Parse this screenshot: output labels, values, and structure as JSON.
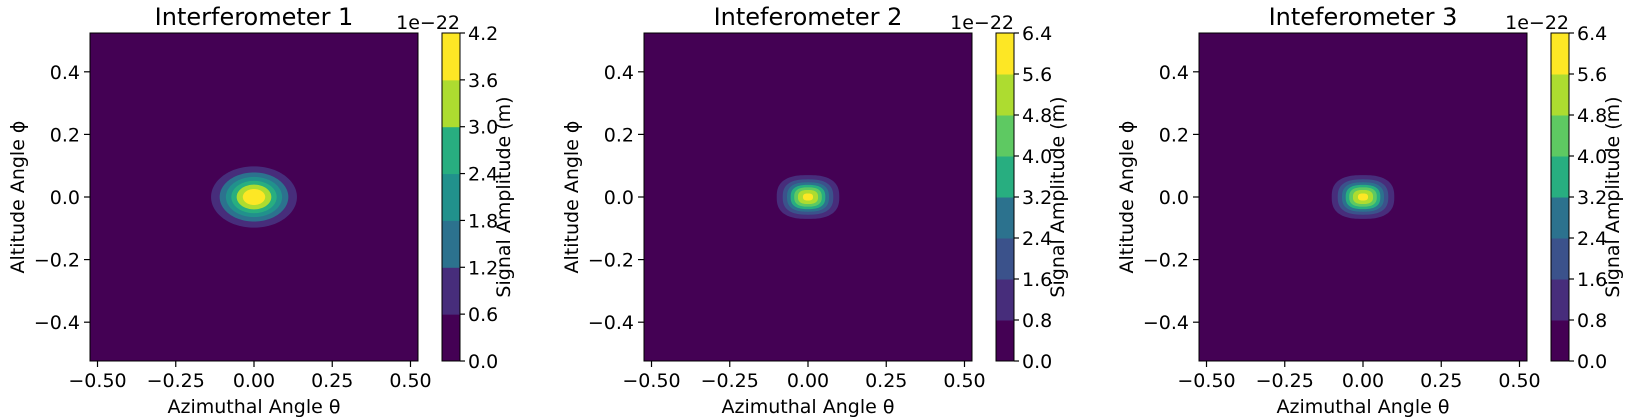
{
  "colormap": [
    "#440154",
    "#472d7b",
    "#3b528b",
    "#2c728e",
    "#21918c",
    "#28ae80",
    "#5ec962",
    "#addc30",
    "#fde725"
  ],
  "chart_data": [
    {
      "type": "heatmap",
      "subtype": "filled-contour",
      "title": "Interferometer 1",
      "xlabel": "Azimuthal Angle θ",
      "ylabel": "Altitude Angle ϕ",
      "xlim": [
        -0.524,
        0.524
      ],
      "ylim": [
        -0.524,
        0.524
      ],
      "xticks": [
        -0.5,
        -0.25,
        0.0,
        0.25,
        0.5
      ],
      "xtick_labels": [
        "−0.50",
        "−0.25",
        "0.00",
        "0.25",
        "0.50"
      ],
      "yticks": [
        -0.4,
        -0.2,
        0.0,
        0.2,
        0.4
      ],
      "ytick_labels": [
        "−0.4",
        "−0.2",
        "0.0",
        "0.2",
        "0.4"
      ],
      "colorbar": {
        "label": "Signal Amplitude (m)",
        "offset_text": "1e−22",
        "levels": [
          0.0,
          0.6,
          1.2,
          1.8,
          2.4,
          3.0,
          3.6,
          4.2
        ],
        "tick_labels": [
          "0.0",
          "0.6",
          "1.2",
          "1.8",
          "2.4",
          "3.0",
          "3.6",
          "4.2"
        ]
      },
      "peak": {
        "theta": 0.0,
        "phi": 0.0,
        "value": 4.1
      },
      "spread": {
        "theta": 0.07,
        "phi": 0.05
      },
      "shape_power": 2.0
    },
    {
      "type": "heatmap",
      "subtype": "filled-contour",
      "title": "Inteferometer 2",
      "xlabel": "Azimuthal Angle θ",
      "ylabel": "Altitude Angle ϕ",
      "xlim": [
        -0.524,
        0.524
      ],
      "ylim": [
        -0.524,
        0.524
      ],
      "xticks": [
        -0.5,
        -0.25,
        0.0,
        0.25,
        0.5
      ],
      "xtick_labels": [
        "−0.50",
        "−0.25",
        "0.00",
        "0.25",
        "0.50"
      ],
      "yticks": [
        -0.4,
        -0.2,
        0.0,
        0.2,
        0.4
      ],
      "ytick_labels": [
        "−0.4",
        "−0.2",
        "0.0",
        "0.2",
        "0.4"
      ],
      "colorbar": {
        "label": "Signal Amplitude (m)",
        "offset_text": "1e−22",
        "levels": [
          0.0,
          0.8,
          1.6,
          2.4,
          3.2,
          4.0,
          4.8,
          5.6,
          6.4
        ],
        "tick_labels": [
          "0.0",
          "0.8",
          "1.6",
          "2.4",
          "3.2",
          "4.0",
          "4.8",
          "5.6",
          "6.4"
        ]
      },
      "peak": {
        "theta": 0.0,
        "phi": 0.0,
        "value": 5.9
      },
      "spread": {
        "theta": 0.05,
        "phi": 0.035
      },
      "shape_power": 2.6
    },
    {
      "type": "heatmap",
      "subtype": "filled-contour",
      "title": "Inteferometer 3",
      "xlabel": "Azimuthal Angle θ",
      "ylabel": "Altitude Angle ϕ",
      "xlim": [
        -0.524,
        0.524
      ],
      "ylim": [
        -0.524,
        0.524
      ],
      "xticks": [
        -0.5,
        -0.25,
        0.0,
        0.25,
        0.5
      ],
      "xtick_labels": [
        "−0.50",
        "−0.25",
        "0.00",
        "0.25",
        "0.50"
      ],
      "yticks": [
        -0.4,
        -0.2,
        0.0,
        0.2,
        0.4
      ],
      "ytick_labels": [
        "−0.4",
        "−0.2",
        "0.0",
        "0.2",
        "0.4"
      ],
      "colorbar": {
        "label": "Signal Amplitude (m)",
        "offset_text": "1e−22",
        "levels": [
          0.0,
          0.8,
          1.6,
          2.4,
          3.2,
          4.0,
          4.8,
          5.6,
          6.4
        ],
        "tick_labels": [
          "0.0",
          "0.8",
          "1.6",
          "2.4",
          "3.2",
          "4.0",
          "4.8",
          "5.6",
          "6.4"
        ]
      },
      "peak": {
        "theta": 0.0,
        "phi": 0.0,
        "value": 5.9
      },
      "spread": {
        "theta": 0.05,
        "phi": 0.035
      },
      "shape_power": 2.6
    }
  ]
}
